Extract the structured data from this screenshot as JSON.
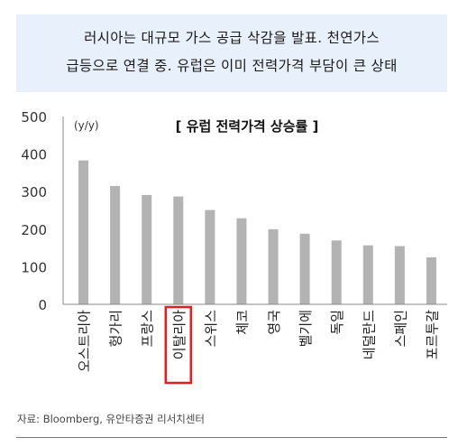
{
  "banner": {
    "line1": "러시아는 대규모 가스 공급 삭감을 발표. 천연가스",
    "line2": "급등으로 연결 중. 유럽은 이미 전력가격 부담이 큰 상태"
  },
  "chart_data": {
    "type": "bar",
    "title": "[ 유럽 전력가격 상승률 ]",
    "unit_label": "(y/y)",
    "categories": [
      "오스트리아",
      "헝가리",
      "프랑스",
      "이탈리아",
      "스위스",
      "체코",
      "영국",
      "벨기에",
      "독일",
      "네덜란드",
      "스페인",
      "포르투갈"
    ],
    "values": [
      383,
      315,
      291,
      287,
      251,
      229,
      200,
      188,
      170,
      157,
      155,
      125
    ],
    "ylim": [
      0,
      500
    ],
    "yticks": [
      0,
      100,
      200,
      300,
      400,
      500
    ],
    "grid": false,
    "bar_color": "#b3b3b3",
    "highlight_category": "이탈리아",
    "highlight_color": "#e02020"
  },
  "source": "자료: Bloomberg, 유안타증권 리서치센터"
}
